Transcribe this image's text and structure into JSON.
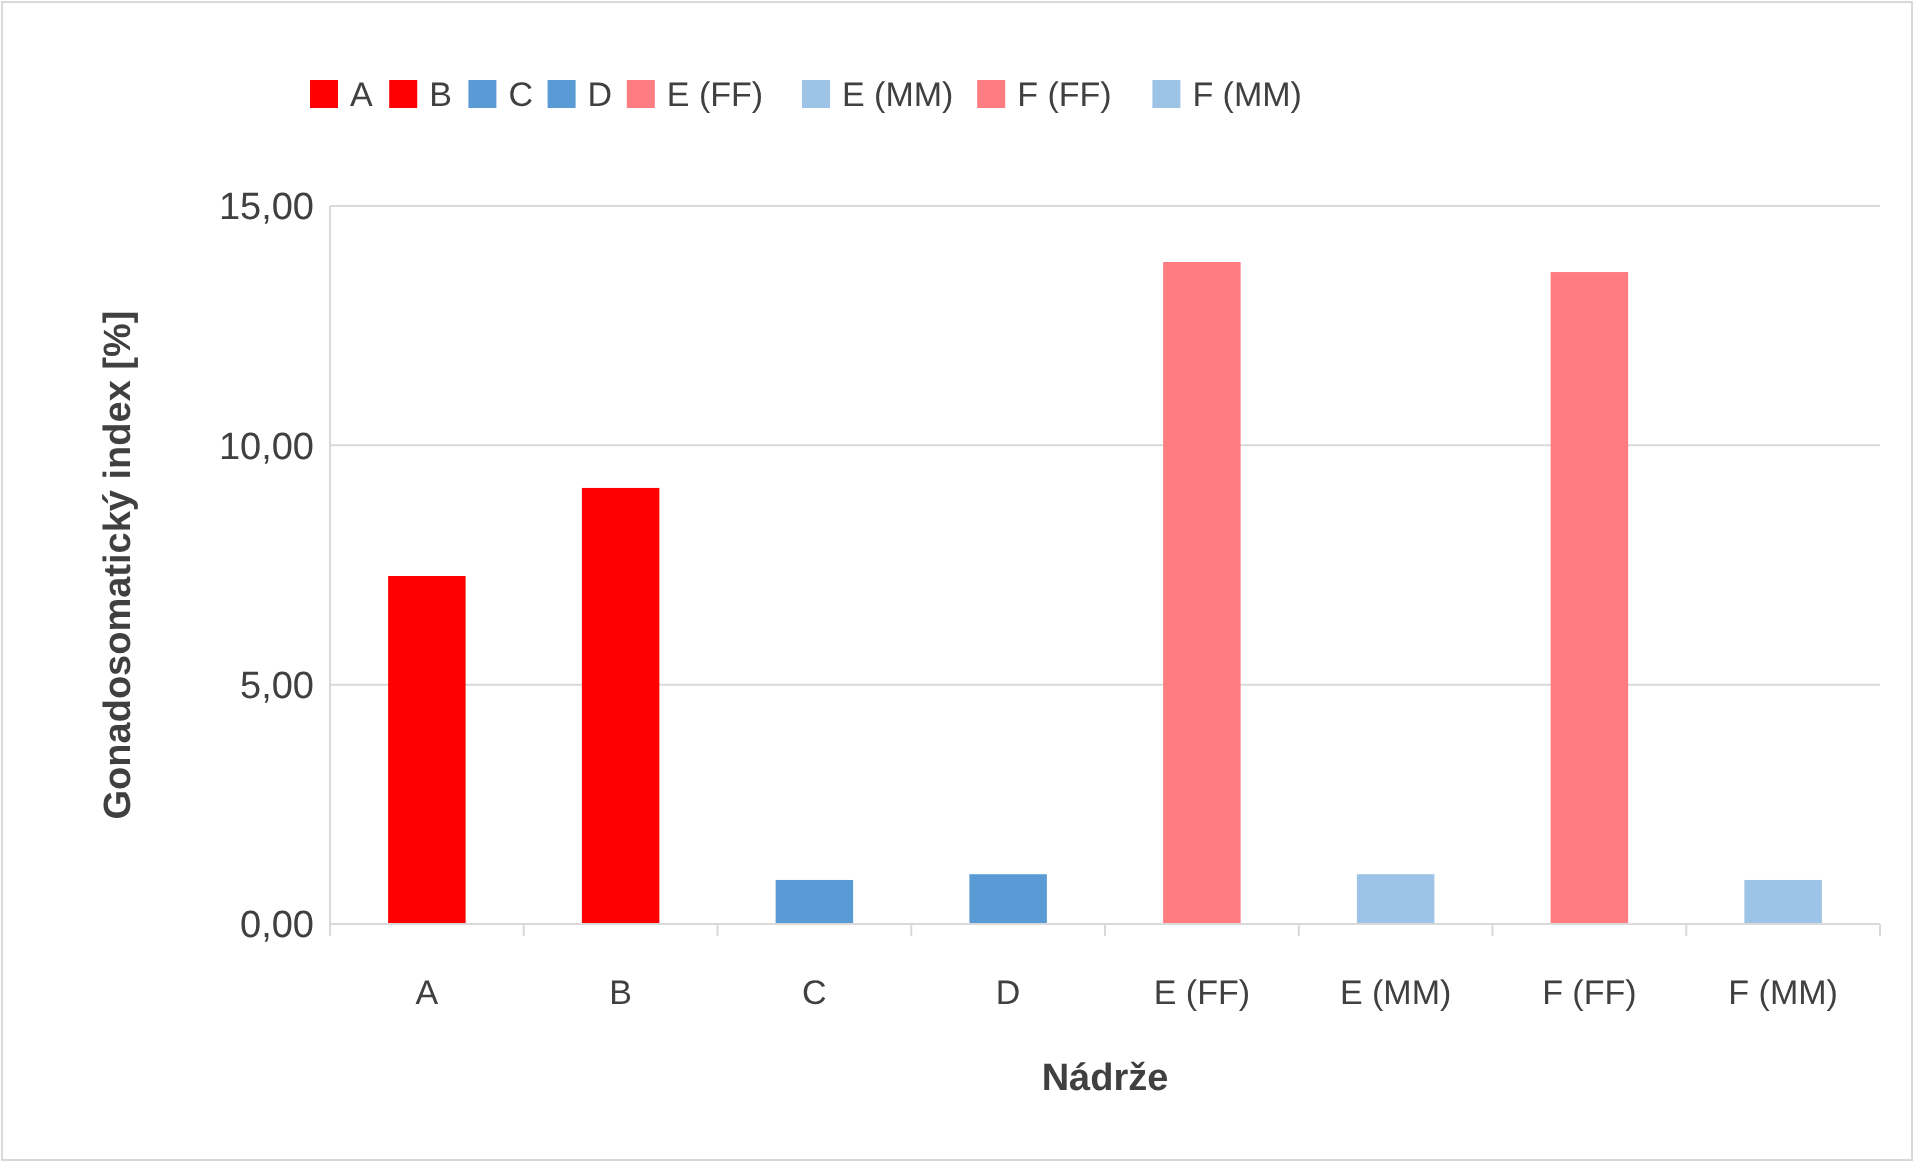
{
  "chart_data": {
    "type": "bar",
    "xlabel": "Nádrže",
    "ylabel": "Gonadosomatický index [%]",
    "categories": [
      "A",
      "B",
      "C",
      "D",
      "E (FF)",
      "E (MM)",
      "F (FF)",
      "F (MM)"
    ],
    "series": [
      {
        "name": "A",
        "color": "#ff0000",
        "values": [
          7.27,
          null,
          null,
          null,
          null,
          null,
          null,
          null
        ]
      },
      {
        "name": "B",
        "color": "#ff0000",
        "values": [
          null,
          9.11,
          null,
          null,
          null,
          null,
          null,
          null
        ]
      },
      {
        "name": "C",
        "color": "#5b9bd5",
        "values": [
          null,
          null,
          0.92,
          null,
          null,
          null,
          null,
          null
        ]
      },
      {
        "name": "D",
        "color": "#5b9bd5",
        "values": [
          null,
          null,
          null,
          1.04,
          null,
          null,
          null,
          null
        ]
      },
      {
        "name": "E (FF)",
        "color": "#ff7c80",
        "values": [
          null,
          null,
          null,
          null,
          13.83,
          null,
          null,
          null
        ]
      },
      {
        "name": "E (MM)",
        "color": "#9dc3e6",
        "values": [
          null,
          null,
          null,
          null,
          null,
          1.04,
          null,
          null
        ]
      },
      {
        "name": "F (FF)",
        "color": "#ff7c80",
        "values": [
          null,
          null,
          null,
          null,
          null,
          null,
          13.62,
          null
        ]
      },
      {
        "name": "F (MM)",
        "color": "#9dc3e6",
        "values": [
          null,
          null,
          null,
          null,
          null,
          null,
          null,
          0.92
        ]
      }
    ],
    "ylim": [
      0,
      15
    ],
    "yticks": [
      {
        "value": 0,
        "label": "0,00"
      },
      {
        "value": 5,
        "label": "5,00"
      },
      {
        "value": 10,
        "label": "10,00"
      },
      {
        "value": 15,
        "label": "15,00"
      }
    ],
    "grid": "y",
    "legend": "top"
  }
}
